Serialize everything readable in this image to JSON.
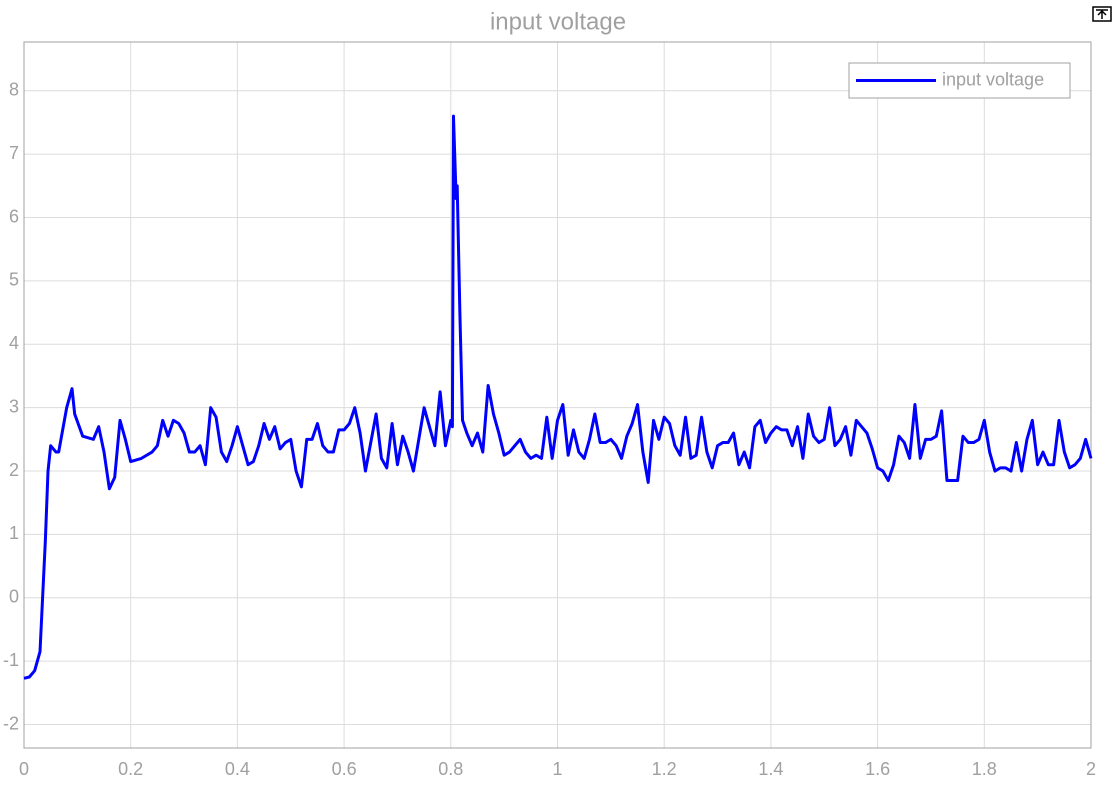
{
  "chart_data": {
    "type": "line",
    "title": "input voltage",
    "x": [
      0,
      0.01,
      0.02,
      0.03,
      0.04,
      0.045,
      0.05,
      0.06,
      0.065,
      0.08,
      0.09,
      0.095,
      0.11,
      0.13,
      0.14,
      0.15,
      0.16,
      0.17,
      0.18,
      0.19,
      0.2,
      0.22,
      0.24,
      0.25,
      0.26,
      0.27,
      0.28,
      0.29,
      0.3,
      0.31,
      0.32,
      0.33,
      0.34,
      0.35,
      0.36,
      0.37,
      0.38,
      0.39,
      0.4,
      0.41,
      0.42,
      0.43,
      0.44,
      0.45,
      0.46,
      0.47,
      0.48,
      0.49,
      0.5,
      0.51,
      0.52,
      0.53,
      0.54,
      0.55,
      0.56,
      0.57,
      0.58,
      0.59,
      0.6,
      0.61,
      0.62,
      0.63,
      0.64,
      0.65,
      0.66,
      0.67,
      0.68,
      0.69,
      0.7,
      0.71,
      0.72,
      0.73,
      0.74,
      0.75,
      0.76,
      0.77,
      0.78,
      0.79,
      0.8,
      0.803,
      0.805,
      0.81,
      0.812,
      0.817,
      0.822,
      0.83,
      0.84,
      0.85,
      0.86,
      0.87,
      0.88,
      0.89,
      0.9,
      0.91,
      0.92,
      0.93,
      0.94,
      0.95,
      0.96,
      0.97,
      0.98,
      0.99,
      1.0,
      1.01,
      1.02,
      1.03,
      1.04,
      1.05,
      1.06,
      1.07,
      1.08,
      1.09,
      1.1,
      1.11,
      1.12,
      1.13,
      1.14,
      1.15,
      1.16,
      1.17,
      1.18,
      1.19,
      1.2,
      1.21,
      1.22,
      1.23,
      1.24,
      1.25,
      1.26,
      1.27,
      1.28,
      1.29,
      1.3,
      1.31,
      1.32,
      1.33,
      1.34,
      1.35,
      1.36,
      1.37,
      1.38,
      1.39,
      1.4,
      1.41,
      1.42,
      1.43,
      1.44,
      1.45,
      1.46,
      1.47,
      1.48,
      1.49,
      1.5,
      1.51,
      1.52,
      1.53,
      1.54,
      1.55,
      1.56,
      1.57,
      1.58,
      1.59,
      1.6,
      1.61,
      1.62,
      1.63,
      1.64,
      1.65,
      1.66,
      1.67,
      1.68,
      1.69,
      1.7,
      1.71,
      1.72,
      1.73,
      1.74,
      1.75,
      1.76,
      1.77,
      1.78,
      1.79,
      1.8,
      1.81,
      1.82,
      1.83,
      1.84,
      1.85,
      1.86,
      1.87,
      1.88,
      1.89,
      1.9,
      1.91,
      1.92,
      1.93,
      1.94,
      1.95,
      1.96,
      1.97,
      1.98,
      1.99,
      2.0
    ],
    "series": [
      {
        "name": "input voltage",
        "color": "#0000ff",
        "values": [
          -1.27,
          -1.25,
          -1.15,
          -0.85,
          0.9,
          2.0,
          2.4,
          2.3,
          2.3,
          3.0,
          3.3,
          2.9,
          2.55,
          2.5,
          2.7,
          2.3,
          1.72,
          1.9,
          2.8,
          2.5,
          2.15,
          2.2,
          2.3,
          2.4,
          2.8,
          2.55,
          2.8,
          2.75,
          2.6,
          2.3,
          2.3,
          2.4,
          2.1,
          3.0,
          2.85,
          2.3,
          2.15,
          2.4,
          2.7,
          2.4,
          2.1,
          2.15,
          2.4,
          2.75,
          2.5,
          2.7,
          2.35,
          2.45,
          2.5,
          2.0,
          1.75,
          2.5,
          2.5,
          2.75,
          2.4,
          2.3,
          2.3,
          2.65,
          2.65,
          2.75,
          3.0,
          2.6,
          2.0,
          2.45,
          2.9,
          2.2,
          2.05,
          2.75,
          2.1,
          2.55,
          2.3,
          2.0,
          2.5,
          3.0,
          2.7,
          2.4,
          3.25,
          2.4,
          2.8,
          2.7,
          7.6,
          6.3,
          6.5,
          4.5,
          2.8,
          2.6,
          2.4,
          2.6,
          2.3,
          3.35,
          2.9,
          2.6,
          2.25,
          2.3,
          2.4,
          2.5,
          2.3,
          2.2,
          2.25,
          2.2,
          2.85,
          2.2,
          2.8,
          3.05,
          2.25,
          2.65,
          2.3,
          2.2,
          2.5,
          2.9,
          2.45,
          2.45,
          2.5,
          2.4,
          2.2,
          2.55,
          2.75,
          3.05,
          2.3,
          1.82,
          2.8,
          2.5,
          2.85,
          2.75,
          2.4,
          2.25,
          2.85,
          2.2,
          2.25,
          2.85,
          2.3,
          2.05,
          2.4,
          2.45,
          2.45,
          2.6,
          2.1,
          2.3,
          2.05,
          2.7,
          2.8,
          2.45,
          2.6,
          2.7,
          2.65,
          2.65,
          2.4,
          2.7,
          2.2,
          2.9,
          2.55,
          2.45,
          2.5,
          3.0,
          2.4,
          2.5,
          2.7,
          2.25,
          2.8,
          2.7,
          2.6,
          2.35,
          2.05,
          2.0,
          1.85,
          2.1,
          2.55,
          2.45,
          2.2,
          3.05,
          2.2,
          2.5,
          2.5,
          2.55,
          2.95,
          1.85,
          1.85,
          1.85,
          2.55,
          2.45,
          2.45,
          2.5,
          2.8,
          2.3,
          2.0,
          2.05,
          2.05,
          2.0,
          2.45,
          2.0,
          2.5,
          2.8,
          2.1,
          2.3,
          2.1,
          2.1,
          2.8,
          2.3,
          2.05,
          2.1,
          2.2,
          2.5,
          2.2
        ]
      }
    ],
    "xlim": [
      0,
      2
    ],
    "xticks": [
      0,
      0.2,
      0.4,
      0.6,
      0.8,
      1,
      1.2,
      1.4,
      1.6,
      1.8,
      2
    ],
    "ylim": [
      -2.37,
      8.77
    ],
    "yticks": [
      -2,
      -1,
      0,
      1,
      2,
      3,
      4,
      5,
      6,
      7,
      8
    ],
    "grid": true,
    "legend": "upper right"
  }
}
